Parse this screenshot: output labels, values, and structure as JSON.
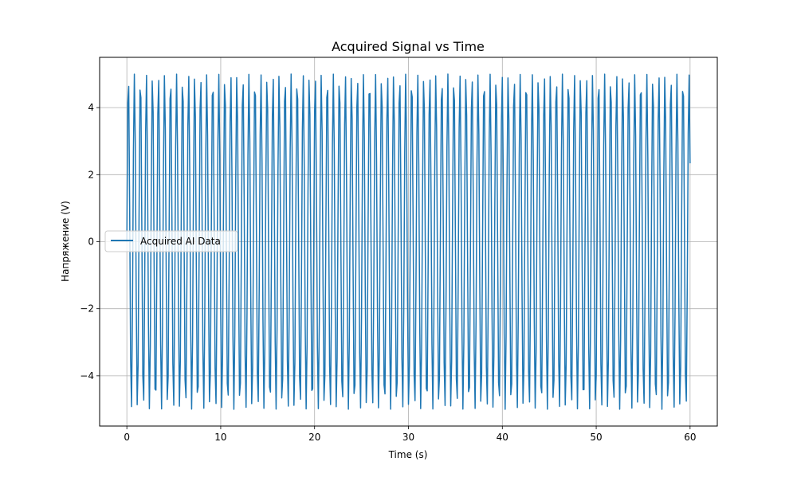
{
  "chart_data": {
    "type": "line",
    "title": "Acquired Signal vs Time",
    "xlabel": "Time (s)",
    "ylabel": "Напряжение (V)",
    "xlim": [
      -2.9,
      62.9
    ],
    "ylim": [
      -5.5,
      5.5
    ],
    "x_ticks": [
      0,
      10,
      20,
      30,
      40,
      50,
      60
    ],
    "y_ticks": [
      -4,
      -2,
      0,
      2,
      4
    ],
    "grid": true,
    "legend_position": "center-left",
    "series": [
      {
        "name": "Acquired AI Data",
        "color": "#1f77b4",
        "signal": {
          "waveform": "sine",
          "amplitude": 5,
          "frequency_hz": 1.0,
          "t_start": 0,
          "t_end": 60,
          "sample_rate_hz": 10
        }
      }
    ]
  }
}
